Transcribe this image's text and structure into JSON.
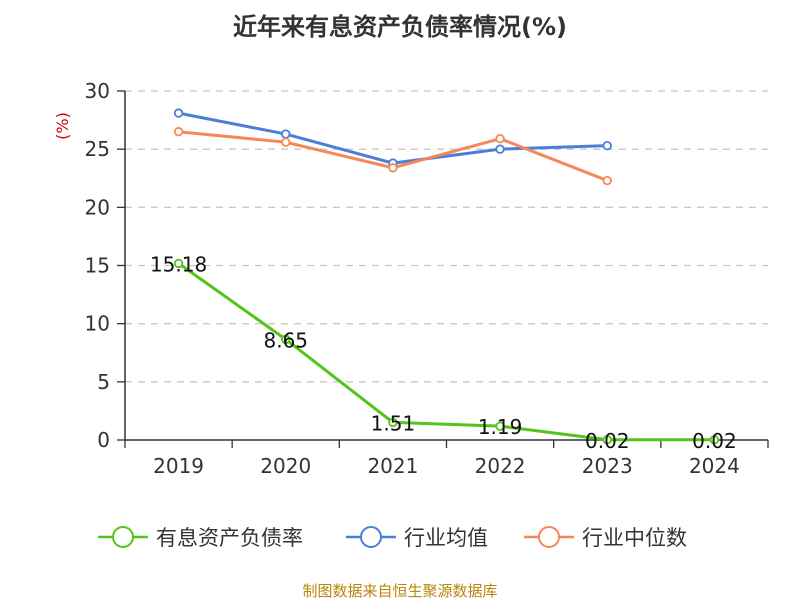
{
  "chart_data": {
    "type": "line",
    "title": "近年来有息资产负债率情况(%)",
    "ylabel": "(%)",
    "xlabel": "",
    "categories": [
      "2019",
      "2020",
      "2021",
      "2022",
      "2023",
      "2024"
    ],
    "ylim": [
      0,
      30
    ],
    "yticks": [
      0,
      5,
      10,
      15,
      20,
      25,
      30
    ],
    "grid": true,
    "legend_position": "bottom",
    "series": [
      {
        "name": "有息资产负债率",
        "color": "#52c41a",
        "values": [
          15.18,
          8.65,
          1.51,
          1.19,
          0.02,
          0.02
        ],
        "labels": [
          "15.18",
          "8.65",
          "1.51",
          "1.19",
          "0.02",
          "0.02"
        ]
      },
      {
        "name": "行业均值",
        "color": "#4a7fd8",
        "values": [
          28.1,
          26.3,
          23.8,
          25.0,
          25.3,
          null
        ]
      },
      {
        "name": "行业中位数",
        "color": "#f5885a",
        "values": [
          26.5,
          25.6,
          23.4,
          25.9,
          22.3,
          null
        ]
      }
    ]
  },
  "source_note": "制图数据来自恒生聚源数据库"
}
